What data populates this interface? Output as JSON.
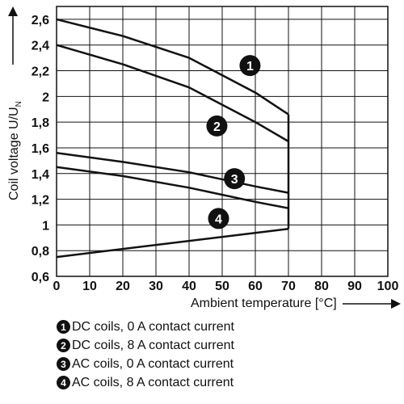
{
  "chart_data": {
    "type": "line",
    "title": "",
    "xlabel": "Ambient temperature [°C]",
    "ylabel_main": "Coil voltage U/U",
    "ylabel_sub": "N",
    "xlim": [
      0,
      100
    ],
    "ylim": [
      0.6,
      2.7
    ],
    "x_ticks": [
      0,
      10,
      20,
      30,
      40,
      50,
      60,
      70,
      80,
      90,
      100
    ],
    "x_tick_labels": [
      "0",
      "10",
      "20",
      "30",
      "40",
      "50",
      "60",
      "70",
      "80",
      "90",
      "100"
    ],
    "y_ticks": [
      0.6,
      0.8,
      1.0,
      1.2,
      1.4,
      1.6,
      1.8,
      2.0,
      2.2,
      2.4,
      2.6
    ],
    "y_tick_labels": [
      "0,6",
      "0,8",
      "1",
      "1,2",
      "1,4",
      "1,6",
      "1,8",
      "2",
      "2,2",
      "2,4",
      "2,6"
    ],
    "grid": true,
    "series": [
      {
        "marker": "1",
        "points": [
          [
            0,
            2.6
          ],
          [
            20,
            2.47
          ],
          [
            40,
            2.3
          ],
          [
            60,
            2.03
          ],
          [
            70,
            1.86
          ]
        ]
      },
      {
        "marker": "2",
        "points": [
          [
            0,
            2.4
          ],
          [
            20,
            2.25
          ],
          [
            40,
            2.07
          ],
          [
            60,
            1.8
          ],
          [
            70,
            1.65
          ]
        ]
      },
      {
        "marker": "3",
        "points": [
          [
            0,
            1.56
          ],
          [
            20,
            1.49
          ],
          [
            40,
            1.41
          ],
          [
            60,
            1.3
          ],
          [
            70,
            1.25
          ]
        ]
      },
      {
        "marker": "4",
        "points": [
          [
            0,
            1.45
          ],
          [
            20,
            1.38
          ],
          [
            40,
            1.29
          ],
          [
            60,
            1.18
          ],
          [
            70,
            1.13
          ]
        ]
      },
      {
        "marker": "",
        "points": [
          [
            0,
            0.75
          ],
          [
            70,
            0.97
          ]
        ]
      }
    ],
    "vertical_segment": {
      "x": 70,
      "y_from": 0.97,
      "y_to": 1.86
    },
    "markers": [
      {
        "label": "1",
        "x": 58.4,
        "y": 2.24
      },
      {
        "label": "2",
        "x": 48.4,
        "y": 1.77
      },
      {
        "label": "3",
        "x": 53.7,
        "y": 1.36
      },
      {
        "label": "4",
        "x": 48.9,
        "y": 1.05
      }
    ]
  },
  "legend": [
    {
      "marker": "1",
      "text": "DC coils, 0 A contact current"
    },
    {
      "marker": "2",
      "text": "DC coils, 8 A contact current"
    },
    {
      "marker": "3",
      "text": "AC coils, 0 A contact current"
    },
    {
      "marker": "4",
      "text": "AC coils, 8 A contact current"
    }
  ]
}
